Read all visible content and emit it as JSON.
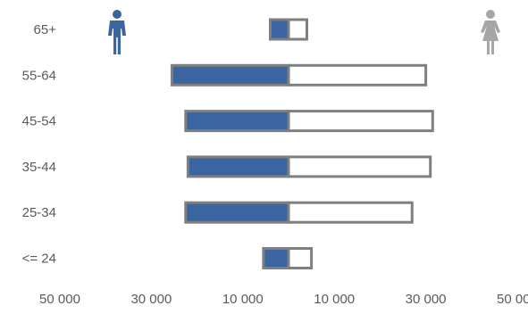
{
  "chart_data": {
    "type": "bar",
    "orientation": "horizontal",
    "layout": "population-pyramid",
    "categories": [
      "65+",
      "55-64",
      "45-54",
      "35-44",
      "25-34",
      "<= 24"
    ],
    "series": [
      {
        "side": "left",
        "color": "#3a65a0",
        "values": [
          4000,
          25500,
          22500,
          22000,
          22500,
          5500
        ]
      },
      {
        "side": "right",
        "color": "#ffffff",
        "outline": "#7f7f7f",
        "values": [
          4000,
          30000,
          31500,
          31000,
          27000,
          5000
        ]
      }
    ],
    "x_ticks": [
      {
        "value": -50000,
        "label": "50 000"
      },
      {
        "value": -30000,
        "label": "30 000"
      },
      {
        "value": -10000,
        "label": "10 000"
      },
      {
        "value": 10000,
        "label": "10 000"
      },
      {
        "value": 30000,
        "label": "30 000"
      },
      {
        "value": 50000,
        "label": "50 000"
      }
    ],
    "xlim": [
      -50000,
      50000
    ],
    "grid": false,
    "legend": "icons-top"
  },
  "icons": {
    "left": "male-icon",
    "right": "female-icon",
    "left_color": "#3a65a0",
    "right_color": "#a6a6a6"
  }
}
